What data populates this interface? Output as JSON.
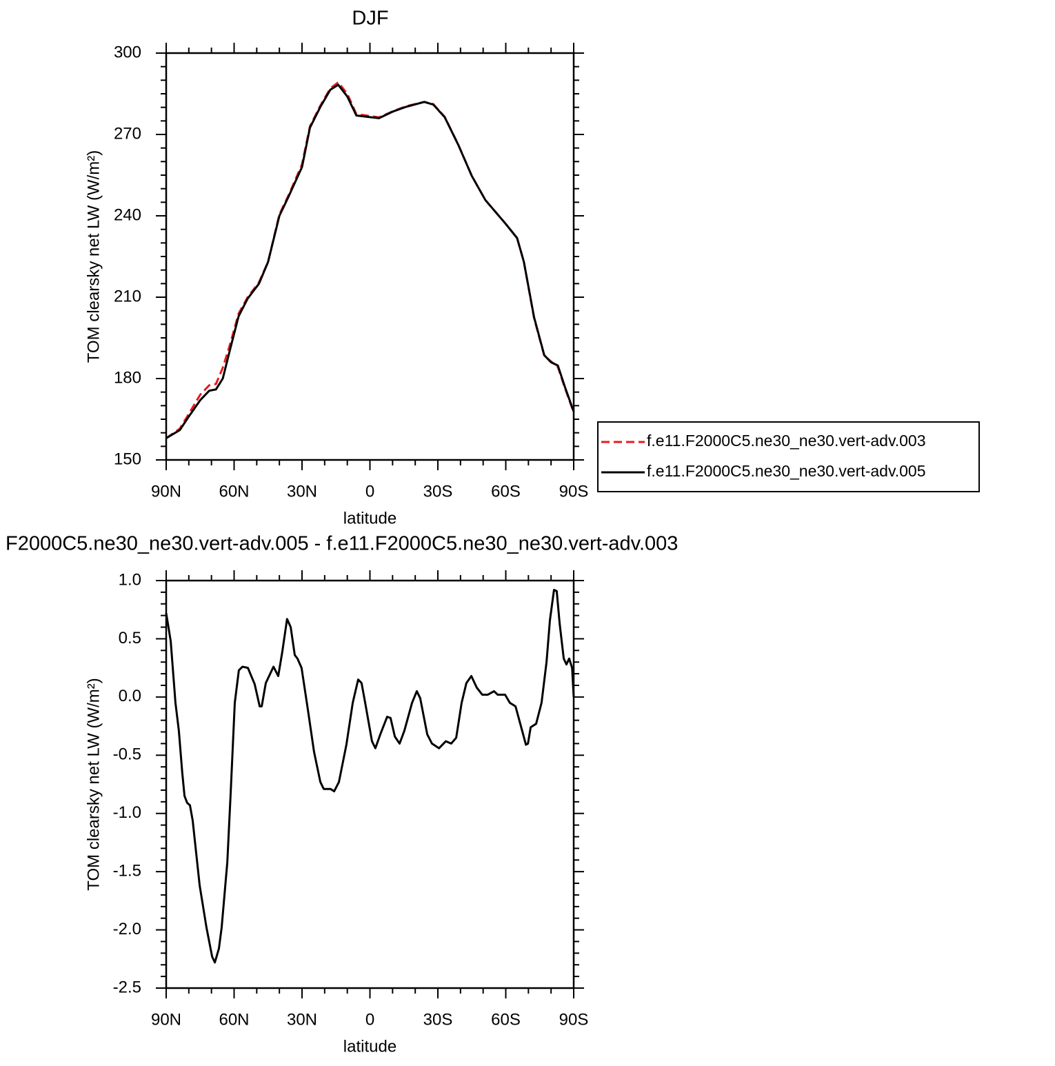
{
  "chart_data": [
    {
      "type": "line",
      "title": "DJF",
      "ylabel": "TOM clearsky net LW (W/m²)",
      "xlabel": "latitude",
      "x": [
        90,
        84,
        80,
        75,
        71,
        68,
        65,
        62,
        58,
        54,
        49,
        45,
        40,
        36,
        30,
        26.5,
        22,
        17.5,
        14,
        10,
        6,
        0,
        -4,
        -10,
        -16,
        -24,
        -28,
        -33,
        -39,
        -45,
        -51,
        -60,
        -65,
        -68,
        -72.5,
        -77,
        -80,
        -83,
        -86,
        -90
      ],
      "series": [
        {
          "name": "f.e11.F2000C5.ne30_ne30.vert-adv.003",
          "color": "#e8191e",
          "linestyle": "dashed",
          "values": [
            158,
            161.5,
            167,
            174,
            177.5,
            178,
            184,
            192,
            204,
            210,
            215.5,
            223,
            240.5,
            247.5,
            259,
            273,
            280.5,
            287,
            289.2,
            285,
            277.5,
            276.8,
            276.3,
            278.5,
            280.4,
            282,
            281.2,
            276.5,
            266.3,
            254.7,
            245.8,
            237,
            231.8,
            223,
            202.3,
            188.4,
            186.3,
            184.3,
            176.8,
            167.5
          ]
        },
        {
          "name": "f.e11.F2000C5.ne30_ne30.vert-adv.005",
          "color": "#000000",
          "linestyle": "solid",
          "values": [
            158,
            161,
            166,
            172,
            175.5,
            176,
            180,
            190,
            203,
            209.5,
            215,
            223,
            240,
            247,
            258,
            272.5,
            280,
            286.5,
            288.3,
            284,
            277,
            276.4,
            276,
            278.4,
            280.2,
            282,
            281,
            276.4,
            266.2,
            254.7,
            245.8,
            237,
            231.8,
            223,
            202.6,
            188.6,
            186,
            184.8,
            177.2,
            167.8
          ]
        }
      ],
      "xlim": [
        90,
        -90
      ],
      "xticks": [
        {
          "value": 90,
          "label": "90N"
        },
        {
          "value": 60,
          "label": "60N"
        },
        {
          "value": 30,
          "label": "30N"
        },
        0,
        {
          "value": -30,
          "label": "30S"
        },
        {
          "value": -60,
          "label": "60S"
        },
        {
          "value": -90,
          "label": "90S"
        }
      ],
      "ylim": [
        150,
        300
      ],
      "yticks": [
        150,
        180,
        210,
        240,
        270,
        300
      ],
      "grid": false,
      "legend": "right"
    },
    {
      "type": "line",
      "title": "F2000C5.ne30_ne30.vert-adv.005 - f.e11.F2000C5.ne30_ne30.vert-adv.003",
      "ylabel": "TOM clearsky net LW (W/m²)",
      "xlabel": "latitude",
      "x": [
        90,
        88,
        85.9,
        84.4,
        82.9,
        81.9,
        80.7,
        79.5,
        78.3,
        75.2,
        72.2,
        69.7,
        68.5,
        66.7,
        65.5,
        63,
        61.5,
        59.7,
        57.9,
        56.3,
        53.9,
        50.9,
        48.7,
        47.8,
        46,
        42.6,
        40.5,
        38.7,
        36.6,
        35,
        33.2,
        32,
        30.2,
        27.4,
        24.7,
        21.9,
        20.4,
        17.4,
        15.8,
        13.7,
        10.4,
        7.6,
        5.2,
        3.7,
        2.1,
        -0.9,
        -2.4,
        -4.6,
        -7.6,
        -9.1,
        -11,
        -13.1,
        -15.2,
        -18.6,
        -20.7,
        -22.2,
        -25.3,
        -27.4,
        -30.5,
        -33.5,
        -35.9,
        -38.1,
        -40.5,
        -42.6,
        -44.8,
        -47.2,
        -49.6,
        -52.1,
        -54.8,
        -56.4,
        -59.7,
        -61.8,
        -64.3,
        -66.4,
        -68.9,
        -69.8,
        -71,
        -73.4,
        -75.8,
        -78,
        -79.5,
        -81.3,
        -82.5,
        -83.8,
        -85.6,
        -86.8,
        -88,
        -89.3,
        -90
      ],
      "values": [
        0.72,
        0.48,
        -0.05,
        -0.29,
        -0.65,
        -0.85,
        -0.91,
        -0.93,
        -1.06,
        -1.62,
        -1.98,
        -2.23,
        -2.28,
        -2.16,
        -1.98,
        -1.42,
        -0.82,
        -0.05,
        0.23,
        0.26,
        0.25,
        0.11,
        -0.08,
        -0.08,
        0.12,
        0.26,
        0.18,
        0.39,
        0.67,
        0.6,
        0.36,
        0.33,
        0.25,
        -0.11,
        -0.47,
        -0.73,
        -0.79,
        -0.79,
        -0.81,
        -0.73,
        -0.41,
        -0.05,
        0.15,
        0.12,
        -0.05,
        -0.38,
        -0.44,
        -0.32,
        -0.17,
        -0.18,
        -0.34,
        -0.4,
        -0.29,
        -0.05,
        0.05,
        -0.01,
        -0.32,
        -0.4,
        -0.44,
        -0.38,
        -0.4,
        -0.35,
        -0.05,
        0.12,
        0.18,
        0.08,
        0.02,
        0.02,
        0.05,
        0.02,
        0.02,
        -0.05,
        -0.08,
        -0.23,
        -0.41,
        -0.4,
        -0.26,
        -0.23,
        -0.05,
        0.3,
        0.66,
        0.92,
        0.91,
        0.63,
        0.33,
        0.28,
        0.33,
        0.25,
        0
      ],
      "color": "#000000",
      "xlim": [
        90,
        -90
      ],
      "xticks": [
        {
          "value": 90,
          "label": "90N"
        },
        {
          "value": 60,
          "label": "60N"
        },
        {
          "value": 30,
          "label": "30N"
        },
        0,
        {
          "value": -30,
          "label": "30S"
        },
        {
          "value": -60,
          "label": "60S"
        },
        {
          "value": -90,
          "label": "90S"
        }
      ],
      "ylim": [
        -2.5,
        1.0
      ],
      "yticks": [
        -2.5,
        {
          "value": -2.0,
          "label": "-2.0"
        },
        -1.5,
        {
          "value": -1.0,
          "label": "-1.0"
        },
        -0.5,
        {
          "value": 0,
          "label": "0.0"
        },
        0.5,
        {
          "value": 1.0,
          "label": "1.0"
        }
      ],
      "grid": false
    }
  ]
}
